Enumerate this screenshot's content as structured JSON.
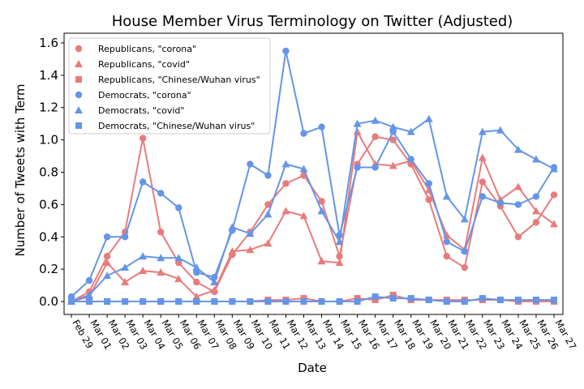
{
  "chart_data": {
    "type": "line",
    "title": "House Member Virus Terminology on Twitter (Adjusted)",
    "xlabel": "Date",
    "ylabel": "Number of Tweets with Term",
    "categories": [
      "Feb 29",
      "Mar 01",
      "Mar 02",
      "Mar 03",
      "Mar 04",
      "Mar 05",
      "Mar 06",
      "Mar 07",
      "Mar 08",
      "Mar 09",
      "Mar 10",
      "Mar 11",
      "Mar 12",
      "Mar 13",
      "Mar 14",
      "Mar 15",
      "Mar 16",
      "Mar 17",
      "Mar 18",
      "Mar 19",
      "Mar 20",
      "Mar 21",
      "Mar 22",
      "Mar 23",
      "Mar 24",
      "Mar 25",
      "Mar 26",
      "Mar 27"
    ],
    "yticks": [
      "0.0",
      "0.2",
      "0.4",
      "0.6",
      "0.8",
      "1.0",
      "1.2",
      "1.4",
      "1.6"
    ],
    "ylim": [
      -0.08,
      1.66
    ],
    "legend_position": "upper-left",
    "colors": {
      "republicans": "#e87b7b",
      "democrats": "#6495e8"
    },
    "series": [
      {
        "name": "Republicans, \"corona\"",
        "party": "republicans",
        "marker": "circle",
        "values": [
          0.0,
          0.06,
          0.28,
          0.43,
          1.01,
          0.43,
          0.24,
          0.12,
          0.06,
          0.29,
          0.43,
          0.6,
          0.73,
          0.78,
          0.62,
          0.28,
          0.85,
          1.02,
          1.0,
          0.85,
          0.63,
          0.28,
          0.21,
          0.74,
          0.59,
          0.4,
          0.49,
          0.66
        ]
      },
      {
        "name": "Republicans, \"covid\"",
        "party": "republicans",
        "marker": "triangle",
        "values": [
          0.0,
          0.03,
          0.24,
          0.12,
          0.19,
          0.18,
          0.14,
          0.03,
          0.07,
          0.31,
          0.32,
          0.36,
          0.56,
          0.53,
          0.25,
          0.24,
          1.05,
          0.85,
          0.84,
          0.87,
          0.69,
          0.41,
          0.32,
          0.89,
          0.63,
          0.71,
          0.56,
          0.48
        ]
      },
      {
        "name": "Republicans, \"Chinese/Wuhan virus\"",
        "party": "republicans",
        "marker": "square",
        "values": [
          0.0,
          0.0,
          0.0,
          0.0,
          0.0,
          0.0,
          0.0,
          0.0,
          0.0,
          0.0,
          0.0,
          0.01,
          0.01,
          0.02,
          0.0,
          0.0,
          0.02,
          0.01,
          0.04,
          0.01,
          0.01,
          0.01,
          0.01,
          0.01,
          0.01,
          0.0,
          0.0,
          0.0
        ]
      },
      {
        "name": "Democrats, \"corona\"",
        "party": "democrats",
        "marker": "circle",
        "values": [
          0.03,
          0.13,
          0.4,
          0.4,
          0.74,
          0.67,
          0.58,
          0.18,
          0.15,
          0.44,
          0.85,
          0.78,
          1.55,
          1.04,
          1.08,
          0.41,
          0.83,
          0.83,
          1.05,
          0.88,
          0.73,
          0.37,
          0.31,
          0.65,
          0.61,
          0.6,
          0.65,
          0.83
        ]
      },
      {
        "name": "Democrats, \"covid\"",
        "party": "democrats",
        "marker": "triangle",
        "values": [
          0.0,
          0.04,
          0.16,
          0.21,
          0.28,
          0.27,
          0.27,
          0.21,
          0.12,
          0.46,
          0.42,
          0.54,
          0.85,
          0.82,
          0.56,
          0.37,
          1.1,
          1.12,
          1.08,
          1.05,
          1.13,
          0.65,
          0.51,
          1.05,
          1.06,
          0.94,
          0.88,
          0.82
        ]
      },
      {
        "name": "Democrats, \"Chinese/Wuhan virus\"",
        "party": "democrats",
        "marker": "square",
        "values": [
          0.0,
          0.0,
          0.0,
          0.0,
          0.0,
          0.0,
          0.0,
          0.0,
          0.0,
          0.0,
          0.0,
          0.0,
          0.0,
          0.0,
          0.0,
          0.0,
          0.0,
          0.03,
          0.02,
          0.02,
          0.01,
          0.0,
          0.0,
          0.02,
          0.01,
          0.01,
          0.01,
          0.01
        ]
      }
    ]
  }
}
